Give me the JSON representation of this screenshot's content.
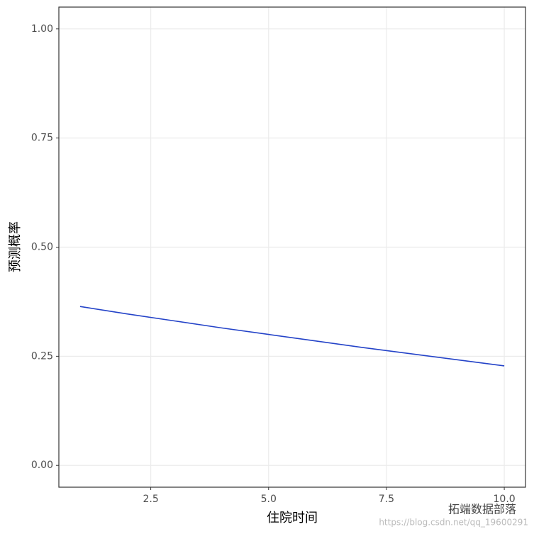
{
  "chart_data": {
    "type": "line",
    "x_label": "住院时间",
    "y_label": "预测概率",
    "x": [
      1,
      2,
      3,
      4,
      5,
      6,
      7,
      8,
      9,
      10
    ],
    "series": [
      {
        "color": "#2443c8",
        "values": [
          0.364,
          0.347,
          0.331,
          0.315,
          0.3,
          0.285,
          0.27,
          0.256,
          0.242,
          0.228
        ]
      }
    ],
    "xlim": [
      0.55,
      10.45
    ],
    "xticks": [
      {
        "value": 2.5,
        "label": "2.5"
      },
      {
        "value": 5,
        "label": "5.0"
      },
      {
        "value": 7.5,
        "label": "7.5"
      },
      {
        "value": 10,
        "label": "10.0"
      }
    ],
    "ylim": [
      -0.05,
      1.05
    ],
    "yticks": [
      {
        "value": 0,
        "label": "0.00"
      },
      {
        "value": 0.25,
        "label": "0.25"
      },
      {
        "value": 0.5,
        "label": "0.50"
      },
      {
        "value": 0.75,
        "label": "0.75"
      },
      {
        "value": 1,
        "label": "1.00"
      }
    ],
    "grid": true,
    "watermark": "拓端数据部落",
    "watermark_url": "https://blog.csdn.net/qq_19600291"
  }
}
